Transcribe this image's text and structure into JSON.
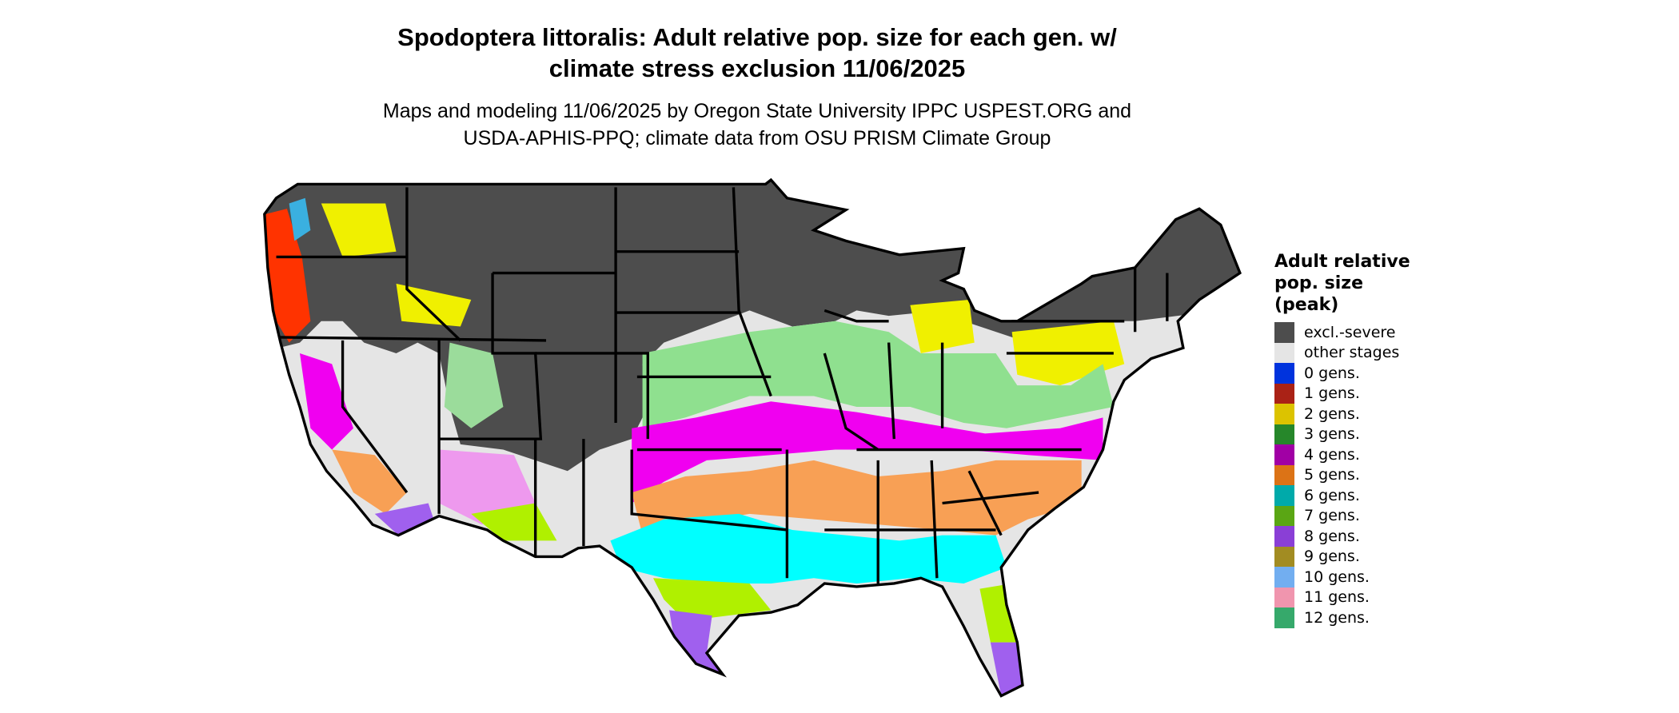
{
  "header": {
    "title_line1": "Spodoptera littoralis: Adult relative pop. size for each gen. w/",
    "title_line2": "climate stress exclusion 11/06/2025",
    "subtitle_line1": "Maps and modeling 11/06/2025 by Oregon State University IPPC USPEST.ORG and",
    "subtitle_line2": "USDA-APHIS-PPQ; climate data from OSU PRISM Climate Group"
  },
  "map": {
    "region": "Contiguous United States",
    "colors": {
      "excluded": "#4d4d4d",
      "other": "#e5e5e5",
      "state_border": "#000000"
    }
  },
  "legend": {
    "title_line1": "Adult relative",
    "title_line2": "pop. size",
    "title_line3": "(peak)",
    "items": [
      {
        "label": "excl.-severe",
        "color": "#4d4d4d"
      },
      {
        "label": "other stages",
        "color": "#e5e5e5"
      },
      {
        "label": "0 gens.",
        "color": "#0033dd"
      },
      {
        "label": "1 gens.",
        "color": "#aa2216"
      },
      {
        "label": "2 gens.",
        "color": "#dcc300"
      },
      {
        "label": "3 gens.",
        "color": "#26872a"
      },
      {
        "label": "4 gens.",
        "color": "#a100a5"
      },
      {
        "label": "5 gens.",
        "color": "#dc7316"
      },
      {
        "label": "6 gens.",
        "color": "#00aaaa"
      },
      {
        "label": "7 gens.",
        "color": "#5aa614"
      },
      {
        "label": "8 gens.",
        "color": "#8a3fd6"
      },
      {
        "label": "9 gens.",
        "color": "#a28c22"
      },
      {
        "label": "10 gens.",
        "color": "#72aef0"
      },
      {
        "label": "11 gens.",
        "color": "#f095ae"
      },
      {
        "label": "12 gens.",
        "color": "#36a96b"
      }
    ]
  }
}
